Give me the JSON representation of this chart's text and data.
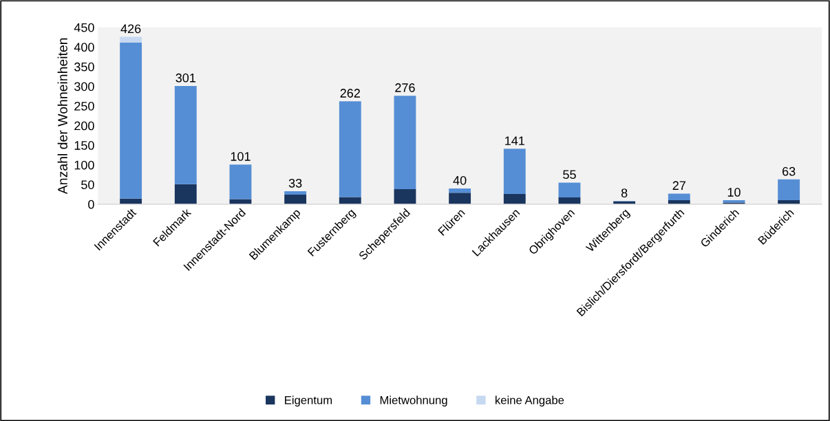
{
  "chart_data": {
    "type": "bar",
    "stacked": true,
    "ylabel": "Anzahl der Wohneinheiten",
    "categories": [
      "Innenstadt",
      "Feldmark",
      "Innenstadt-Nord",
      "Blumenkamp",
      "Fusternberg",
      "Schepersfeld",
      "Flüren",
      "Lackhausen",
      "Obrighoven",
      "Wittenberg",
      "Bislich/Diersfordt/Bergerfurth",
      "Ginderich",
      "Büderich"
    ],
    "series": [
      {
        "name": "Eigentum",
        "color": "#1a355e",
        "values": [
          14,
          51,
          13,
          24,
          18,
          38,
          29,
          26,
          17,
          7,
          10,
          4,
          10
        ]
      },
      {
        "name": "Mietwohnung",
        "color": "#558ed5",
        "values": [
          397,
          250,
          88,
          9,
          244,
          238,
          11,
          115,
          38,
          1,
          17,
          6,
          53
        ]
      },
      {
        "name": "keine Angabe",
        "color": "#c6d9f1",
        "values": [
          15,
          0,
          0,
          0,
          0,
          0,
          0,
          0,
          0,
          0,
          0,
          0,
          0
        ]
      }
    ],
    "totals": [
      "426",
      "301",
      "101",
      "33",
      "262",
      "276",
      "40",
      "141",
      "55",
      "8",
      "27",
      "10",
      "63"
    ],
    "ylim": [
      0,
      450
    ],
    "yticks": [
      0,
      50,
      100,
      150,
      200,
      250,
      300,
      350,
      400,
      450
    ],
    "grid": false,
    "legend": "bottom"
  }
}
